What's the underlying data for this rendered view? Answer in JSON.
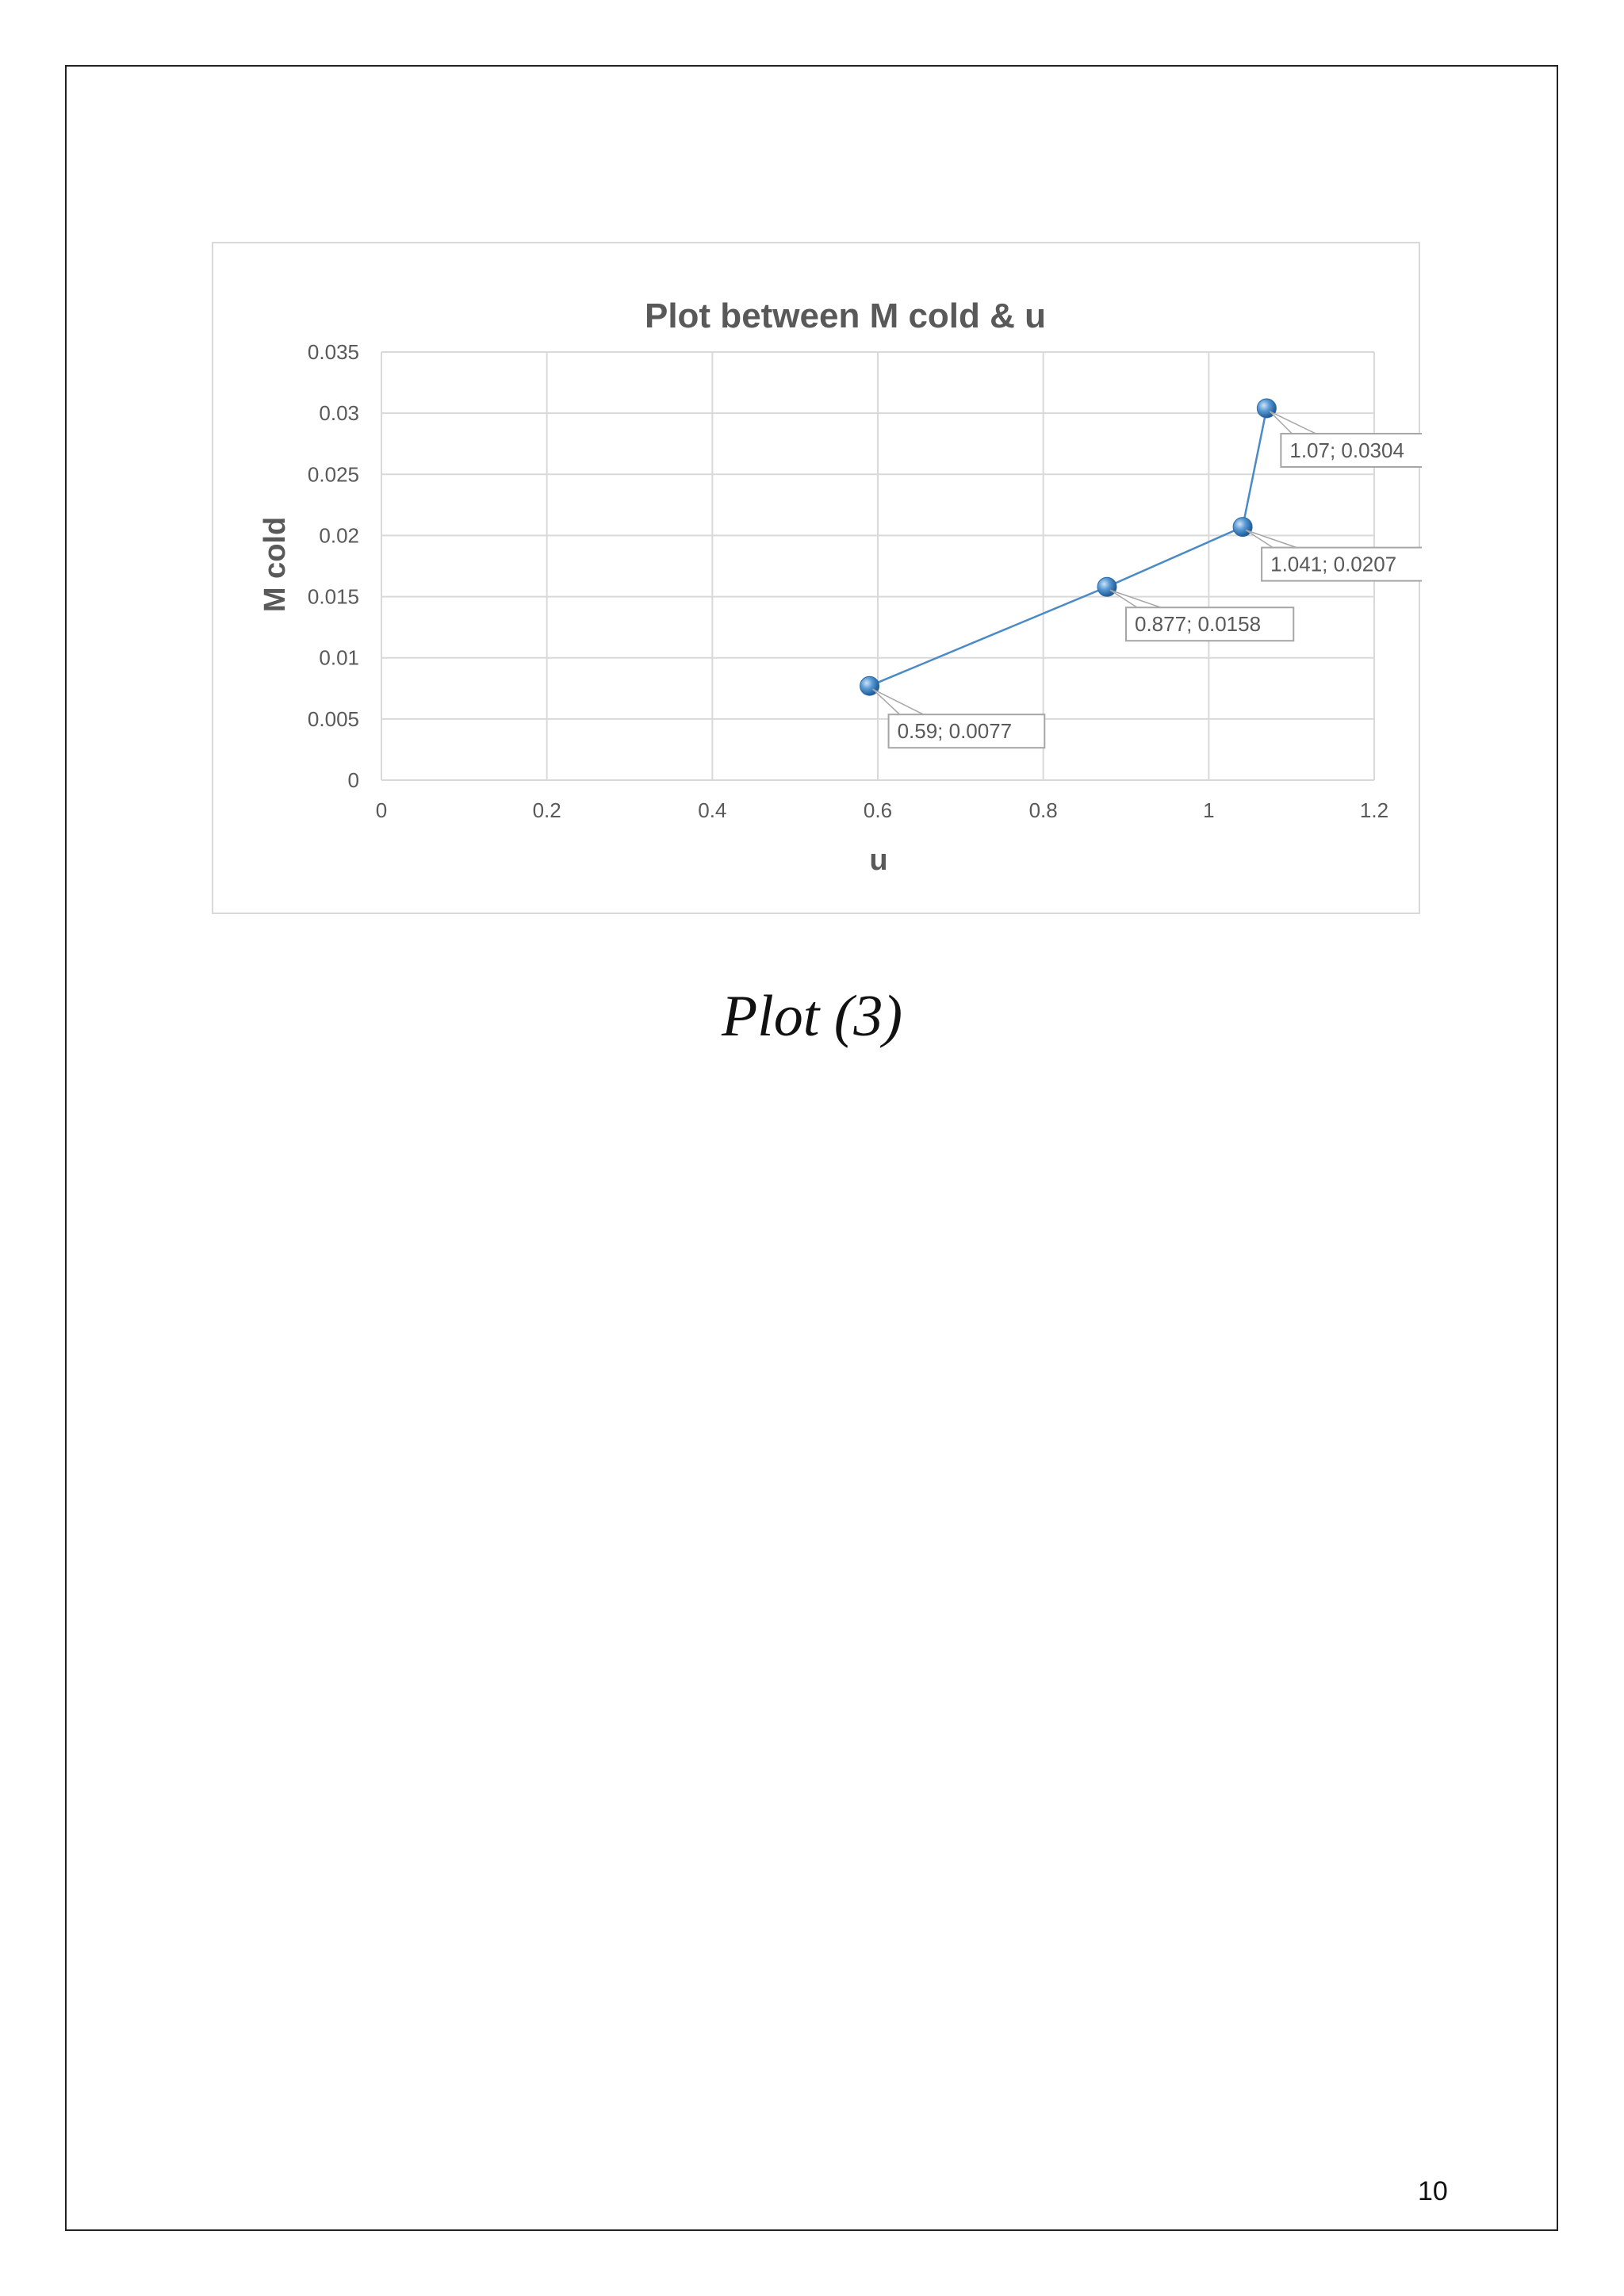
{
  "caption": "Plot (3)",
  "page_number": "10",
  "colors": {
    "series": "#4a8ac6",
    "marker": "#3b7fc4",
    "grid": "#d9d9d9",
    "text": "#595959",
    "label_border": "#a6a6a6"
  },
  "chart_data": {
    "type": "scatter",
    "title": "Plot between M cold & u",
    "xlabel": "u",
    "ylabel": "M cold",
    "xlim": [
      0,
      1.2
    ],
    "ylim": [
      0,
      0.035
    ],
    "x_ticks": [
      "0",
      "0.2",
      "0.4",
      "0.6",
      "0.8",
      "1",
      "1.2"
    ],
    "y_ticks": [
      "0",
      "0.005",
      "0.01",
      "0.015",
      "0.02",
      "0.025",
      "0.03",
      "0.035"
    ],
    "grid": true,
    "lines_connecting_points": true,
    "series": [
      {
        "x": [
          0.59,
          0.877,
          1.041,
          1.07
        ],
        "y": [
          0.0077,
          0.0158,
          0.0207,
          0.0304
        ],
        "labels": [
          "0.59; 0.0077",
          "0.877; 0.0158",
          "1.041; 0.0207",
          "1.07; 0.0304"
        ]
      }
    ]
  }
}
